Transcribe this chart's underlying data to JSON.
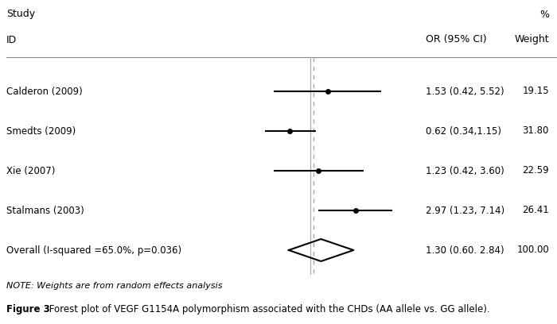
{
  "figure_caption_bold": "Figure 3",
  "figure_caption_rest": " Forest plot of VEGF G1154A polymorphism associated with the CHDs (AA allele vs. GG allele).",
  "note": "NOTE: Weights are from random effects analysis",
  "header_study": "Study",
  "header_percent": "%",
  "header_id": "ID",
  "header_or": "OR (95% CI)",
  "header_weight": "Weight",
  "studies": [
    {
      "name": "Calderon (2009)",
      "or": 1.53,
      "ci_lo": 0.42,
      "ci_hi": 5.52,
      "or_label": "1.53 (0.42, 5.52)",
      "weight": "19.15"
    },
    {
      "name": "Smedts (2009)",
      "or": 0.62,
      "ci_lo": 0.34,
      "ci_hi": 1.15,
      "or_label": "0.62 (0.34,1.15)",
      "weight": "31.80"
    },
    {
      "name": "Xie (2007)",
      "or": 1.23,
      "ci_lo": 0.42,
      "ci_hi": 3.6,
      "or_label": "1.23 (0.42, 3.60)",
      "weight": "22.59"
    },
    {
      "name": "Stalmans (2003)",
      "or": 2.97,
      "ci_lo": 1.23,
      "ci_hi": 7.14,
      "or_label": "2.97 (1.23, 7.14)",
      "weight": "26.41"
    }
  ],
  "overall": {
    "name": "Overall (I-squared =65.0%, p=0.036)",
    "or": 1.3,
    "ci_lo": 0.6,
    "ci_hi": 2.84,
    "or_label": "1.30 (0.60. 2.84)",
    "weight": "100.00"
  },
  "xmin": 0.15,
  "xmax": 12.0,
  "xref": 1.0,
  "bg_color": "#ffffff",
  "text_color": "#000000",
  "line_color": "#000000",
  "dashed_color": "#aaaaaa",
  "solid_vline_color": "#aaaaaa"
}
